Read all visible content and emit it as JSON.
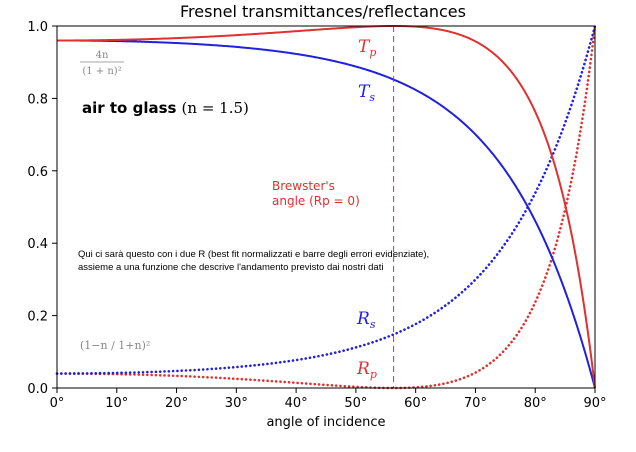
{
  "chart_data": {
    "type": "line",
    "title": "Fresnel transmittances/reflectances",
    "xlabel": "angle of incidence",
    "ylabel": "",
    "xlim": [
      0,
      90
    ],
    "ylim": [
      0,
      1.0
    ],
    "n": 1.5,
    "x_ticks": [
      "0°",
      "10°",
      "20°",
      "30°",
      "40°",
      "50°",
      "60°",
      "70°",
      "80°",
      "90°"
    ],
    "y_ticks": [
      "0.0",
      "0.2",
      "0.4",
      "0.6",
      "0.8",
      "1.0"
    ],
    "brewster_angle_deg": 56.31,
    "grid": false,
    "series": [
      {
        "name": "Tp",
        "color": "#e03030",
        "style": "solid"
      },
      {
        "name": "Ts",
        "color": "#2020e0",
        "style": "solid"
      },
      {
        "name": "Rs",
        "color": "#2020e0",
        "style": "dotted"
      },
      {
        "name": "Rp",
        "color": "#e03030",
        "style": "dotted"
      }
    ],
    "annotations": {
      "tp_main": "T",
      "tp_sub": "p",
      "ts_main": "T",
      "ts_sub": "s",
      "rs_main": "R",
      "rs_sub": "s",
      "rp_main": "R",
      "rp_sub": "p",
      "formula_top_num": "4n",
      "formula_top_den": "(1 + n)²",
      "formula_bottom": "(1−n / 1+n)²",
      "air_glass_bold": "air to glass",
      "air_glass_math": "(n = 1.5)",
      "brewster_line1": "Brewster's",
      "brewster_line2": "angle (Rp = 0)",
      "note_line1": "Qui ci sarà questo con i due R (best fit normalizzati e barre degli errori evidenziate),",
      "note_line2": "assieme a una funzione che descrive l'andamento previsto dai nostri dati"
    }
  }
}
